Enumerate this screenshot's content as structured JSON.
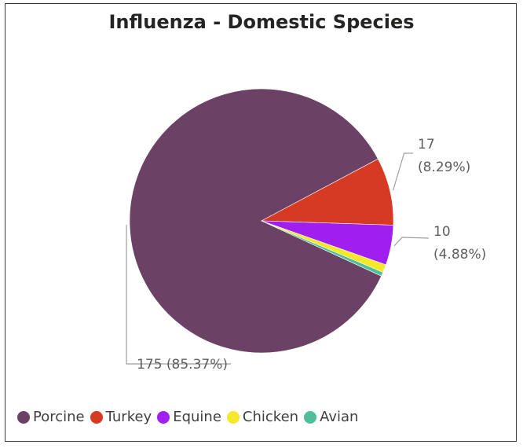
{
  "chart_data": {
    "type": "pie",
    "title": "Influenza - Domestic Species",
    "categories": [
      "Porcine",
      "Turkey",
      "Equine",
      "Chicken",
      "Avian"
    ],
    "values": [
      175,
      17,
      10,
      2,
      1
    ],
    "colors": [
      "#6b4266",
      "#d63a22",
      "#9e1ff0",
      "#f5e82a",
      "#4fbf9a"
    ],
    "data_labels": [
      {
        "category": "Porcine",
        "text": "175 (85.37%)"
      },
      {
        "category": "Turkey",
        "value_text": "17",
        "percent_text": "(8.29%)"
      },
      {
        "category": "Equine",
        "value_text": "10",
        "percent_text": "(4.88%)"
      }
    ],
    "legend_position": "bottom-left"
  }
}
